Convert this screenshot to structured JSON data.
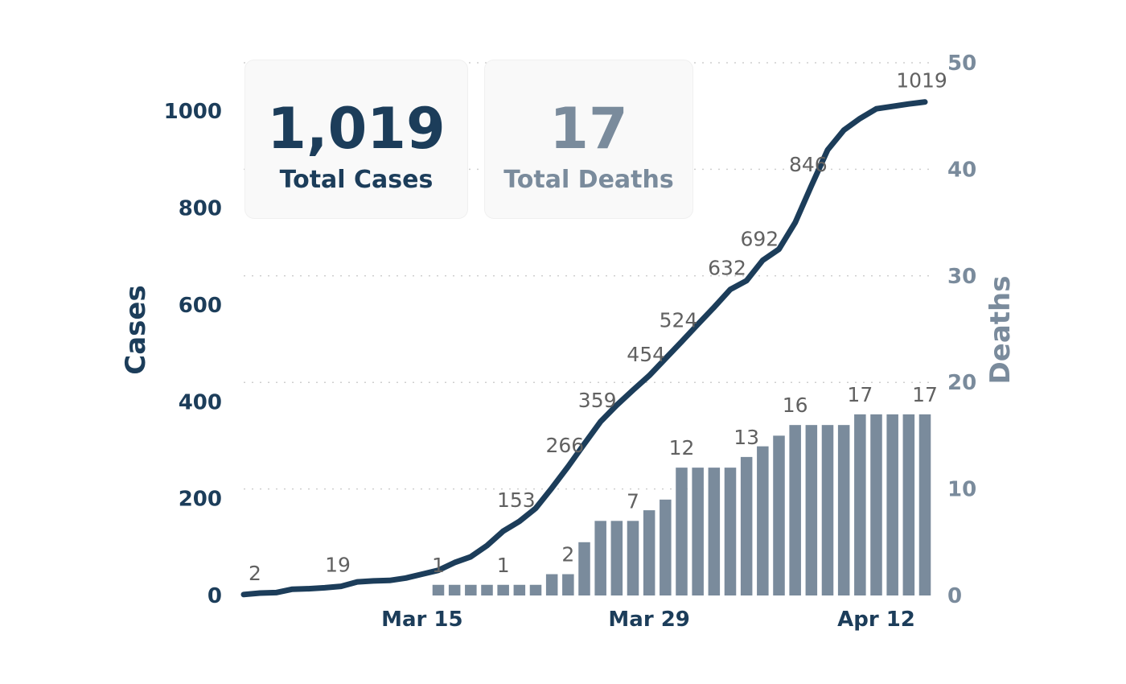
{
  "colors": {
    "cases": "#1c3d5a",
    "deaths": "#7a8b9c",
    "grid": "#cfcfcf",
    "label": "#616161"
  },
  "cards": {
    "cases": {
      "value": "1,019",
      "label": "Total Cases"
    },
    "deaths": {
      "value": "17",
      "label": "Total Deaths"
    }
  },
  "chart_data": {
    "type": "line+bar",
    "y_left": {
      "label": "Cases",
      "range": [
        0,
        1100
      ],
      "ticks": [
        0,
        200,
        400,
        600,
        800,
        1000
      ]
    },
    "y_right": {
      "label": "Deaths",
      "range": [
        0,
        50
      ],
      "ticks": [
        0,
        10,
        20,
        30,
        40,
        50
      ]
    },
    "x_ticks": [
      {
        "label": "Mar 15",
        "day": 11
      },
      {
        "label": "Mar 29",
        "day": 25
      },
      {
        "label": "Apr 12",
        "day": 39
      }
    ],
    "days": 43,
    "grid": "dotted horizontal",
    "series": [
      {
        "name": "Cases",
        "type": "line",
        "axis": "left",
        "values": [
          2,
          5,
          6,
          13,
          14,
          16,
          19,
          28,
          30,
          31,
          36,
          44,
          52,
          68,
          80,
          103,
          133,
          153,
          180,
          222,
          266,
          313,
          359,
          393,
          424,
          454,
          489,
          524,
          560,
          595,
          632,
          650,
          692,
          715,
          770,
          846,
          920,
          961,
          985,
          1005,
          1010,
          1015,
          1019
        ],
        "labels": [
          {
            "index": 0,
            "text": "2"
          },
          {
            "index": 6,
            "text": "19"
          },
          {
            "index": 17,
            "text": "153"
          },
          {
            "index": 20,
            "text": "266"
          },
          {
            "index": 22,
            "text": "359"
          },
          {
            "index": 25,
            "text": "454"
          },
          {
            "index": 27,
            "text": "524"
          },
          {
            "index": 30,
            "text": "632"
          },
          {
            "index": 32,
            "text": "692"
          },
          {
            "index": 35,
            "text": "846"
          },
          {
            "index": 42,
            "text": "1019"
          }
        ]
      },
      {
        "name": "Deaths",
        "type": "bar",
        "axis": "right",
        "start_index": 12,
        "values": [
          1,
          1,
          1,
          1,
          1,
          1,
          1,
          2,
          2,
          5,
          7,
          7,
          7,
          8,
          9,
          12,
          12,
          12,
          12,
          13,
          14,
          15,
          16,
          16,
          16,
          16,
          17,
          17,
          17,
          17,
          17
        ],
        "labels": [
          {
            "index": 12,
            "text": "1"
          },
          {
            "index": 16,
            "text": "1"
          },
          {
            "index": 20,
            "text": "2"
          },
          {
            "index": 24,
            "text": "7"
          },
          {
            "index": 27,
            "text": "12"
          },
          {
            "index": 31,
            "text": "13"
          },
          {
            "index": 34,
            "text": "16"
          },
          {
            "index": 38,
            "text": "17"
          },
          {
            "index": 42,
            "text": "17"
          }
        ]
      }
    ]
  }
}
